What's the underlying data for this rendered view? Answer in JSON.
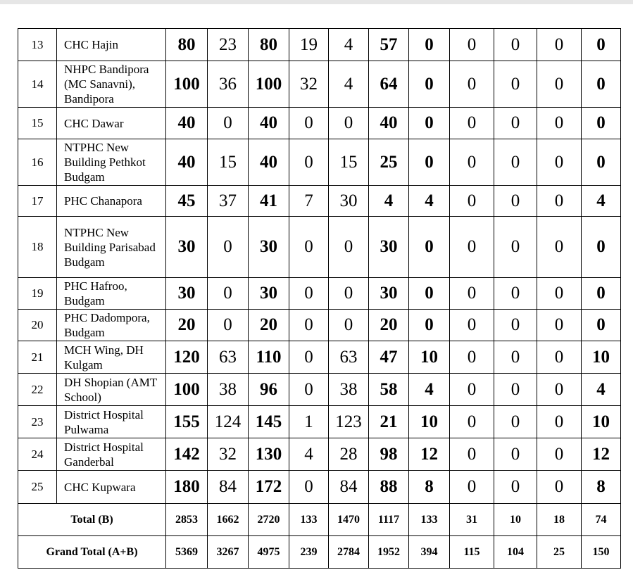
{
  "rows": [
    {
      "sno": "13",
      "name": "CHC Hajin",
      "v": [
        "80",
        "23",
        "80",
        "19",
        "4",
        "57",
        "0",
        "0",
        "0",
        "0",
        "0"
      ]
    },
    {
      "sno": "14",
      "name": "NHPC Bandipora (MC Sanavni), Bandipora",
      "v": [
        "100",
        "36",
        "100",
        "32",
        "4",
        "64",
        "0",
        "0",
        "0",
        "0",
        "0"
      ]
    },
    {
      "sno": "15",
      "name": "CHC Dawar",
      "v": [
        "40",
        "0",
        "40",
        "0",
        "0",
        "40",
        "0",
        "0",
        "0",
        "0",
        "0"
      ]
    },
    {
      "sno": "16",
      "name": "NTPHC New Building Pethkot Budgam",
      "v": [
        "40",
        "15",
        "40",
        "0",
        "15",
        "25",
        "0",
        "0",
        "0",
        "0",
        "0"
      ]
    },
    {
      "sno": "17",
      "name": "PHC Chanapora",
      "v": [
        "45",
        "37",
        "41",
        "7",
        "30",
        "4",
        "4",
        "0",
        "0",
        "0",
        "4"
      ]
    },
    {
      "sno": "18",
      "name": "NTPHC New Building Parisabad Budgam",
      "v": [
        "30",
        "0",
        "30",
        "0",
        "0",
        "30",
        "0",
        "0",
        "0",
        "0",
        "0"
      ]
    },
    {
      "sno": "19",
      "name": "PHC Hafroo, Budgam",
      "v": [
        "30",
        "0",
        "30",
        "0",
        "0",
        "30",
        "0",
        "0",
        "0",
        "0",
        "0"
      ]
    },
    {
      "sno": "20",
      "name": "PHC Dadompora, Budgam",
      "v": [
        "20",
        "0",
        "20",
        "0",
        "0",
        "20",
        "0",
        "0",
        "0",
        "0",
        "0"
      ]
    },
    {
      "sno": "21",
      "name": "MCH Wing, DH Kulgam",
      "v": [
        "120",
        "63",
        "110",
        "0",
        "63",
        "47",
        "10",
        "0",
        "0",
        "0",
        "10"
      ]
    },
    {
      "sno": "22",
      "name": "DH Shopian (AMT School)",
      "v": [
        "100",
        "38",
        "96",
        "0",
        "38",
        "58",
        "4",
        "0",
        "0",
        "0",
        "4"
      ]
    },
    {
      "sno": "23",
      "name": "District Hospital Pulwama",
      "v": [
        "155",
        "124",
        "145",
        "1",
        "123",
        "21",
        "10",
        "0",
        "0",
        "0",
        "10"
      ]
    },
    {
      "sno": "24",
      "name": "District Hospital Ganderbal",
      "v": [
        "142",
        "32",
        "130",
        "4",
        "28",
        "98",
        "12",
        "0",
        "0",
        "0",
        "12"
      ]
    },
    {
      "sno": "25",
      "name": "CHC Kupwara",
      "v": [
        "180",
        "84",
        "172",
        "0",
        "84",
        "88",
        "8",
        "0",
        "0",
        "0",
        "8"
      ]
    }
  ],
  "totals": [
    {
      "label": "Total (B)",
      "v": [
        "2853",
        "1662",
        "2720",
        "133",
        "1470",
        "1117",
        "133",
        "31",
        "10",
        "18",
        "74"
      ]
    },
    {
      "label": "Grand Total (A+B)",
      "v": [
        "5369",
        "3267",
        "4975",
        "239",
        "2784",
        "1952",
        "394",
        "115",
        "104",
        "25",
        "150"
      ]
    }
  ]
}
